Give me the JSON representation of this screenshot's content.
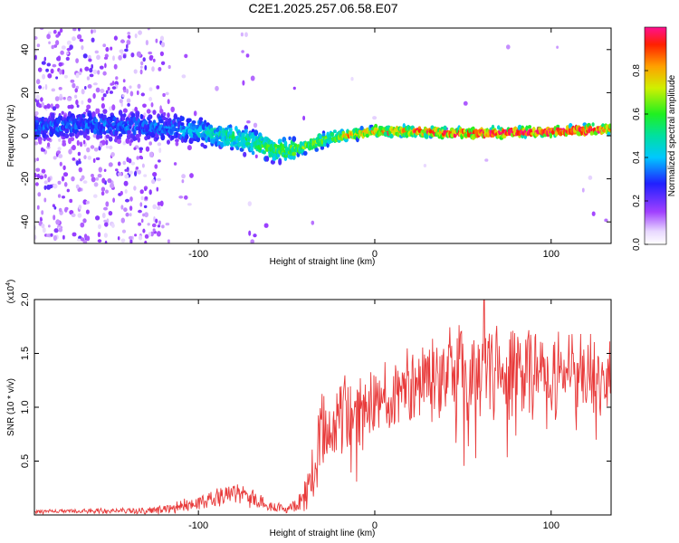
{
  "title": "C2E1.2025.257.06.58.E07",
  "colors": {
    "background": "#ffffff",
    "snr_line": "#e83a3a",
    "axis": "#000000"
  },
  "chart_data": [
    {
      "type": "heatmap",
      "name": "spectrogram",
      "xlabel": "Height of straight line (km)",
      "ylabel": "Frequency (Hz)",
      "xlim": [
        -193,
        134
      ],
      "ylim": [
        -50,
        50
      ],
      "xticks": [
        -100,
        0,
        100
      ],
      "xtick_labels": [
        "-100",
        "0",
        "100"
      ],
      "yticks": [
        -40,
        -20,
        0,
        20,
        40
      ],
      "ytick_labels": [
        "-40",
        "-20",
        "0",
        "20",
        "40"
      ],
      "ridge_x": [
        -193,
        -160,
        -120,
        -100,
        -85,
        -70,
        -58,
        -50,
        -40,
        -30,
        -20,
        -10,
        0,
        20,
        60,
        100,
        134
      ],
      "ridge_y": [
        4,
        5,
        4,
        2,
        0,
        -3,
        -6,
        -7,
        -5,
        -2,
        0,
        1,
        2,
        2,
        1,
        2,
        3
      ],
      "colorbar": {
        "label": "Normalized spectral amplitude",
        "range": [
          0.0,
          1.0
        ],
        "ticks": [
          0.0,
          0.2,
          0.4,
          0.6,
          0.8
        ],
        "tick_labels": [
          "0.0",
          "0.2",
          "0.4",
          "0.6",
          "0.8"
        ]
      }
    },
    {
      "type": "line",
      "name": "snr",
      "xlabel": "Height of straight line (km)",
      "ylabel": "SNR (10 * v/v)",
      "yscale_label": "(x10",
      "yscale_exp": "4",
      "yscale_close": ")",
      "xlim": [
        -193,
        134
      ],
      "ylim": [
        0,
        2.0
      ],
      "xticks": [
        -100,
        0,
        100
      ],
      "xtick_labels": [
        "-100",
        "0",
        "100"
      ],
      "yticks": [
        0.5,
        1.0,
        1.5,
        2.0
      ],
      "ytick_labels": [
        "0.5",
        "1.0",
        "1.5",
        "2.0"
      ],
      "envelope_x": [
        -193,
        -130,
        -115,
        -100,
        -90,
        -80,
        -75,
        -70,
        -60,
        -50,
        -42,
        -38,
        -35,
        -32,
        -28,
        -25,
        -20,
        -15,
        -10,
        -5,
        0,
        10,
        20,
        30,
        40,
        50,
        60,
        70,
        80,
        90,
        100,
        110,
        120,
        134
      ],
      "envelope_y": [
        0.03,
        0.04,
        0.06,
        0.1,
        0.16,
        0.2,
        0.22,
        0.16,
        0.08,
        0.06,
        0.12,
        0.25,
        0.45,
        0.65,
        0.8,
        0.88,
        0.9,
        0.95,
        1.0,
        1.02,
        1.05,
        1.1,
        1.2,
        1.28,
        1.3,
        1.32,
        1.35,
        1.33,
        1.32,
        1.35,
        1.34,
        1.32,
        1.3,
        1.3
      ],
      "spread": [
        0.02,
        0.03,
        0.05,
        0.08,
        0.1,
        0.12,
        0.13,
        0.1,
        0.05,
        0.04,
        0.1,
        0.2,
        0.3,
        0.35,
        0.35,
        0.35,
        0.35,
        0.35,
        0.32,
        0.32,
        0.32,
        0.32,
        0.35,
        0.38,
        0.4,
        0.45,
        0.45,
        0.42,
        0.4,
        0.42,
        0.42,
        0.4,
        0.35,
        0.35
      ],
      "peak": {
        "x": 62,
        "y": 2.0
      }
    }
  ]
}
